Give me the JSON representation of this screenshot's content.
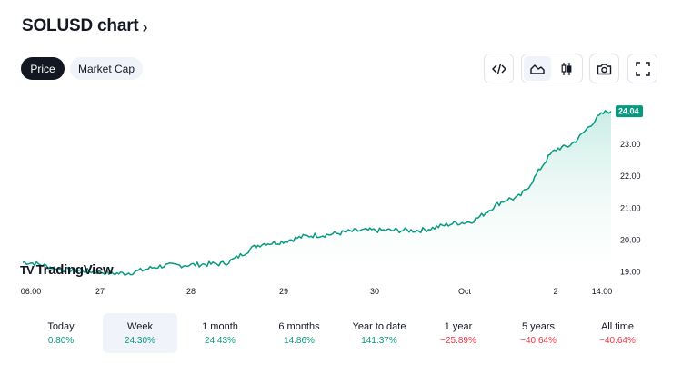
{
  "header": {
    "title": "SOLUSD chart",
    "chevron": "›"
  },
  "tabs": [
    {
      "label": "Price",
      "active": true
    },
    {
      "label": "Market Cap",
      "active": false
    }
  ],
  "toolbar": {
    "embed_icon": "code-brackets-icon",
    "area_icon": "area-chart-icon",
    "candles_icon": "candlestick-icon",
    "snapshot_icon": "camera-icon",
    "fullscreen_icon": "fullscreen-icon",
    "selected_style": "area"
  },
  "logo": {
    "mark": "TV",
    "text": "TradingView"
  },
  "colors": {
    "line": "#089981",
    "area_top": "#c6ebe3",
    "positive": "#089981",
    "negative": "#f23645",
    "text": "#131722"
  },
  "chart_data": {
    "type": "area",
    "symbol": "SOLUSD",
    "last_price": 24.04,
    "last_price_label": "24.04",
    "y_ticks": [
      "23.00",
      "22.00",
      "21.00",
      "20.00",
      "19.00"
    ],
    "x_tick_labels": [
      "06:00",
      "27",
      "28",
      "29",
      "30",
      "Oct",
      "2",
      "14:00"
    ],
    "grid": false,
    "x": [
      "06:00",
      "27 00:00",
      "27 12:00",
      "28 00:00",
      "28 12:00",
      "29 00:00",
      "29 12:00",
      "30 00:00",
      "30 12:00",
      "Oct 00:00",
      "Oct 12:00",
      "2 00:00",
      "2 14:00"
    ],
    "series": [
      {
        "values": [
          19.3,
          19.05,
          18.95,
          19.2,
          19.25,
          19.9,
          20.15,
          20.3,
          20.3,
          20.55,
          21.3,
          22.9,
          24.05
        ]
      }
    ]
  },
  "periods": [
    {
      "label": "Today",
      "value": "0.80%",
      "trend": "pos",
      "selected": false
    },
    {
      "label": "Week",
      "value": "24.30%",
      "trend": "pos",
      "selected": true
    },
    {
      "label": "1 month",
      "value": "24.43%",
      "trend": "pos",
      "selected": false
    },
    {
      "label": "6 months",
      "value": "14.86%",
      "trend": "pos",
      "selected": false
    },
    {
      "label": "Year to date",
      "value": "141.37%",
      "trend": "pos",
      "selected": false
    },
    {
      "label": "1 year",
      "value": "−25.89%",
      "trend": "neg",
      "selected": false
    },
    {
      "label": "5 years",
      "value": "−40.64%",
      "trend": "neg",
      "selected": false
    },
    {
      "label": "All time",
      "value": "−40.64%",
      "trend": "neg",
      "selected": false
    }
  ]
}
